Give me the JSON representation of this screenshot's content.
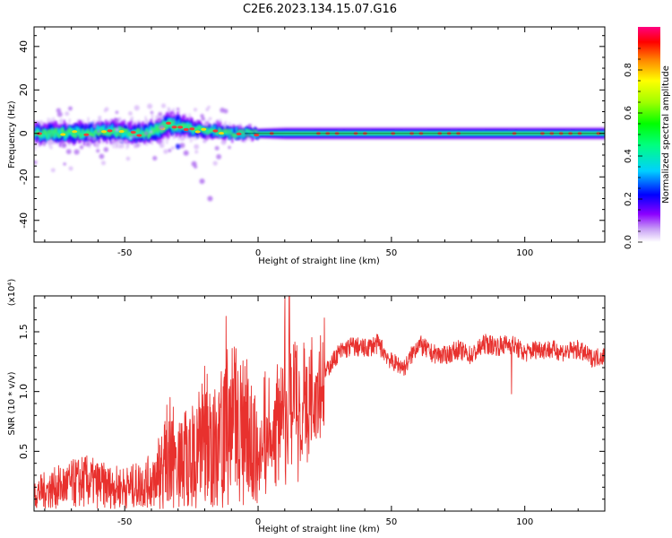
{
  "title": "C2E6.2023.134.15.07.G16",
  "chart_data": [
    {
      "type": "heatmap",
      "xlabel": "Height of straight line (km)",
      "ylabel": "Frequency (Hz)",
      "xlim": [
        -84,
        130
      ],
      "ylim": [
        -50,
        49
      ],
      "xticks": [
        -50,
        0,
        50,
        100
      ],
      "yticks": [
        40,
        20,
        0,
        -20,
        -40
      ],
      "colorbar": {
        "label": "Normalized spectral amplitude",
        "range": [
          0,
          1
        ],
        "ticks": [
          0.0,
          0.2,
          0.4,
          0.6,
          0.8
        ]
      },
      "ridge": {
        "x": [
          -84,
          -70,
          -55,
          -48,
          -42,
          -38,
          -33,
          -28,
          -24,
          -20,
          -15,
          -10,
          -5,
          0,
          10,
          20,
          40,
          60,
          80,
          100,
          130
        ],
        "center_hz": [
          0,
          0,
          1,
          0,
          0,
          2,
          4,
          3,
          2,
          1,
          1,
          0,
          0,
          0,
          0,
          0,
          0,
          0,
          0,
          0,
          0
        ],
        "halfwidth_hz": [
          5,
          5,
          5,
          5,
          5,
          6,
          6,
          5,
          4,
          3.5,
          3.5,
          3,
          3,
          2.5,
          3,
          3,
          3,
          3,
          3,
          3,
          3
        ]
      },
      "tail": {
        "x": [
          -30,
          -27,
          -24,
          -21,
          -18
        ],
        "y_hz": [
          -6,
          -9,
          -14,
          -22,
          -30
        ]
      }
    },
    {
      "type": "line",
      "xlabel": "Height of straight line (km)",
      "ylabel": "SNR (10 * v/v)",
      "y_multiplier": "(x10⁴)",
      "xlim": [
        -84,
        130
      ],
      "ylim": [
        0,
        18000
      ],
      "xticks": [
        -50,
        0,
        50,
        100
      ],
      "yticks": [
        0.5,
        1.0,
        1.5
      ],
      "series": [
        {
          "color": "#e8312e",
          "x": [
            -84,
            -75,
            -65,
            -55,
            -48,
            -40,
            -35,
            -30,
            -25,
            -20,
            -15,
            -10,
            -5,
            0,
            5,
            10,
            15,
            20,
            25,
            30,
            35,
            40,
            45,
            50,
            55,
            60,
            65,
            70,
            75,
            80,
            85,
            90,
            95,
            100,
            105,
            110,
            115,
            120,
            125,
            130
          ],
          "y": [
            1500,
            2000,
            2500,
            2000,
            2000,
            2500,
            4000,
            5000,
            4000,
            6000,
            5000,
            8000,
            6000,
            5000,
            6500,
            9000,
            10000,
            10500,
            11500,
            13200,
            13800,
            13600,
            14000,
            12500,
            12000,
            14000,
            13200,
            13000,
            13500,
            13000,
            14000,
            13800,
            14000,
            13200,
            13600,
            13500,
            13300,
            13500,
            12800,
            13000
          ]
        }
      ],
      "spikes": [
        {
          "x": -12,
          "y": 16300
        },
        {
          "x": 10,
          "y": 18000
        },
        {
          "x": 95,
          "y": 9800
        }
      ]
    }
  ]
}
